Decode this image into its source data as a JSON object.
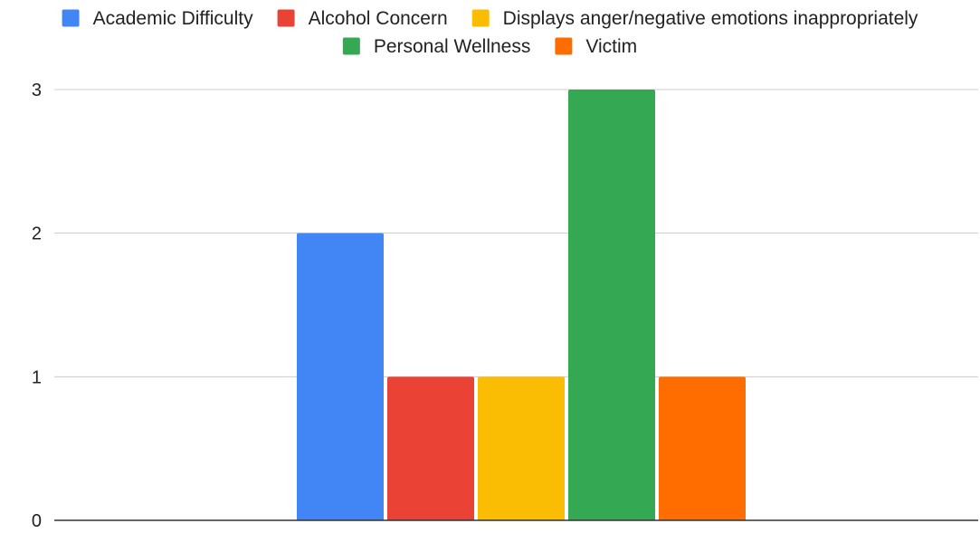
{
  "chart_data": {
    "type": "bar",
    "title": "",
    "xlabel": "",
    "ylabel": "",
    "ylim": [
      0,
      3
    ],
    "yticks": [
      0,
      1,
      2,
      3
    ],
    "grid": true,
    "legend_position": "top",
    "categories": [
      ""
    ],
    "series": [
      {
        "name": "Academic Difficulty",
        "values": [
          2
        ],
        "color": "#4285F4"
      },
      {
        "name": "Alcohol Concern",
        "values": [
          1
        ],
        "color": "#EA4335"
      },
      {
        "name": "Displays anger/negative emotions inappropriately",
        "values": [
          1
        ],
        "color": "#FBBC04"
      },
      {
        "name": "Personal Wellness",
        "values": [
          3
        ],
        "color": "#34A853"
      },
      {
        "name": "Victim",
        "values": [
          1
        ],
        "color": "#FF6D01"
      }
    ]
  }
}
